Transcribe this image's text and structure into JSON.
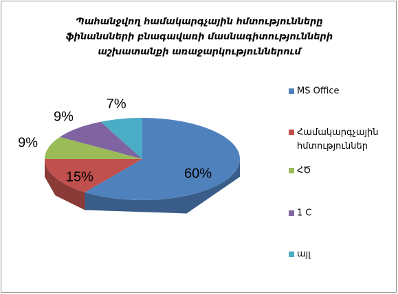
{
  "chart_data": {
    "type": "pie3d",
    "title": [
      "Պահանջվող համակարգչային հմտությունները",
      "ֆինանսների բնագավառի մասնագիտությունների",
      "աշխատանքի առաջարկություններում"
    ],
    "categories": [
      "MS Office",
      "Համակարգչային հմտություններ",
      "ՀԾ",
      "1 C",
      "այլ"
    ],
    "values": [
      60,
      15,
      9,
      9,
      7
    ],
    "value_labels": [
      "60%",
      "15%",
      "9%",
      "9%",
      "7%"
    ],
    "colors": [
      "#4f81bd",
      "#c0504d",
      "#9bbb59",
      "#8064a2",
      "#4bacc6"
    ],
    "legend": "right"
  }
}
